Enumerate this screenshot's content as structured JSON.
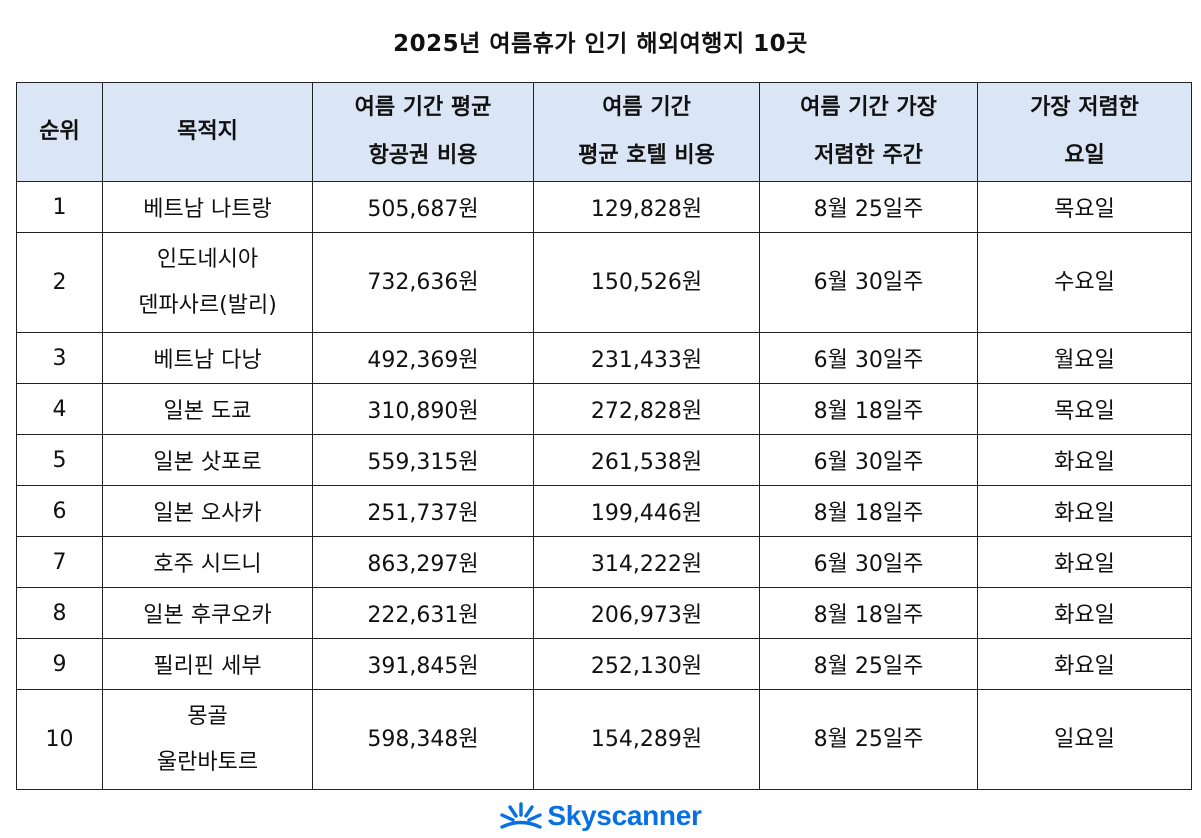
{
  "title": "2025년 여름휴가 인기 해외여행지 10곳",
  "table": {
    "headers": [
      {
        "lines": [
          "순위"
        ]
      },
      {
        "lines": [
          "목적지"
        ]
      },
      {
        "lines": [
          "여름 기간 평균",
          "항공권 비용"
        ]
      },
      {
        "lines": [
          "여름 기간",
          "평균 호텔 비용"
        ]
      },
      {
        "lines": [
          "여름 기간 가장",
          "저렴한 주간"
        ]
      },
      {
        "lines": [
          "가장 저렴한",
          "요일"
        ]
      }
    ],
    "rows": [
      {
        "rank": "1",
        "destination": [
          "베트남 나트랑"
        ],
        "airfare": "505,687원",
        "hotel": "129,828원",
        "week": "8월 25일주",
        "day": "목요일"
      },
      {
        "rank": "2",
        "destination": [
          "인도네시아",
          "덴파사르(발리)"
        ],
        "airfare": "732,636원",
        "hotel": "150,526원",
        "week": "6월 30일주",
        "day": "수요일"
      },
      {
        "rank": "3",
        "destination": [
          "베트남 다낭"
        ],
        "airfare": "492,369원",
        "hotel": "231,433원",
        "week": "6월 30일주",
        "day": "월요일"
      },
      {
        "rank": "4",
        "destination": [
          "일본 도쿄"
        ],
        "airfare": "310,890원",
        "hotel": "272,828원",
        "week": "8월 18일주",
        "day": "목요일"
      },
      {
        "rank": "5",
        "destination": [
          "일본 삿포로"
        ],
        "airfare": "559,315원",
        "hotel": "261,538원",
        "week": "6월 30일주",
        "day": "화요일"
      },
      {
        "rank": "6",
        "destination": [
          "일본 오사카"
        ],
        "airfare": "251,737원",
        "hotel": "199,446원",
        "week": "8월 18일주",
        "day": "화요일"
      },
      {
        "rank": "7",
        "destination": [
          "호주 시드니"
        ],
        "airfare": "863,297원",
        "hotel": "314,222원",
        "week": "6월 30일주",
        "day": "화요일"
      },
      {
        "rank": "8",
        "destination": [
          "일본 후쿠오카"
        ],
        "airfare": "222,631원",
        "hotel": "206,973원",
        "week": "8월 18일주",
        "day": "화요일"
      },
      {
        "rank": "9",
        "destination": [
          "필리핀 세부"
        ],
        "airfare": "391,845원",
        "hotel": "252,130원",
        "week": "8월 25일주",
        "day": "화요일"
      },
      {
        "rank": "10",
        "destination": [
          "몽골",
          "울란바토르"
        ],
        "airfare": "598,348원",
        "hotel": "154,289원",
        "week": "8월 25일주",
        "day": "일요일"
      }
    ]
  },
  "footer": {
    "brand": "Skyscanner",
    "icon": "skyscanner-sunrise-logo-icon",
    "brand_color": "#0770e3"
  },
  "colors": {
    "header_background": "#dae6f5",
    "border": "#222222"
  }
}
